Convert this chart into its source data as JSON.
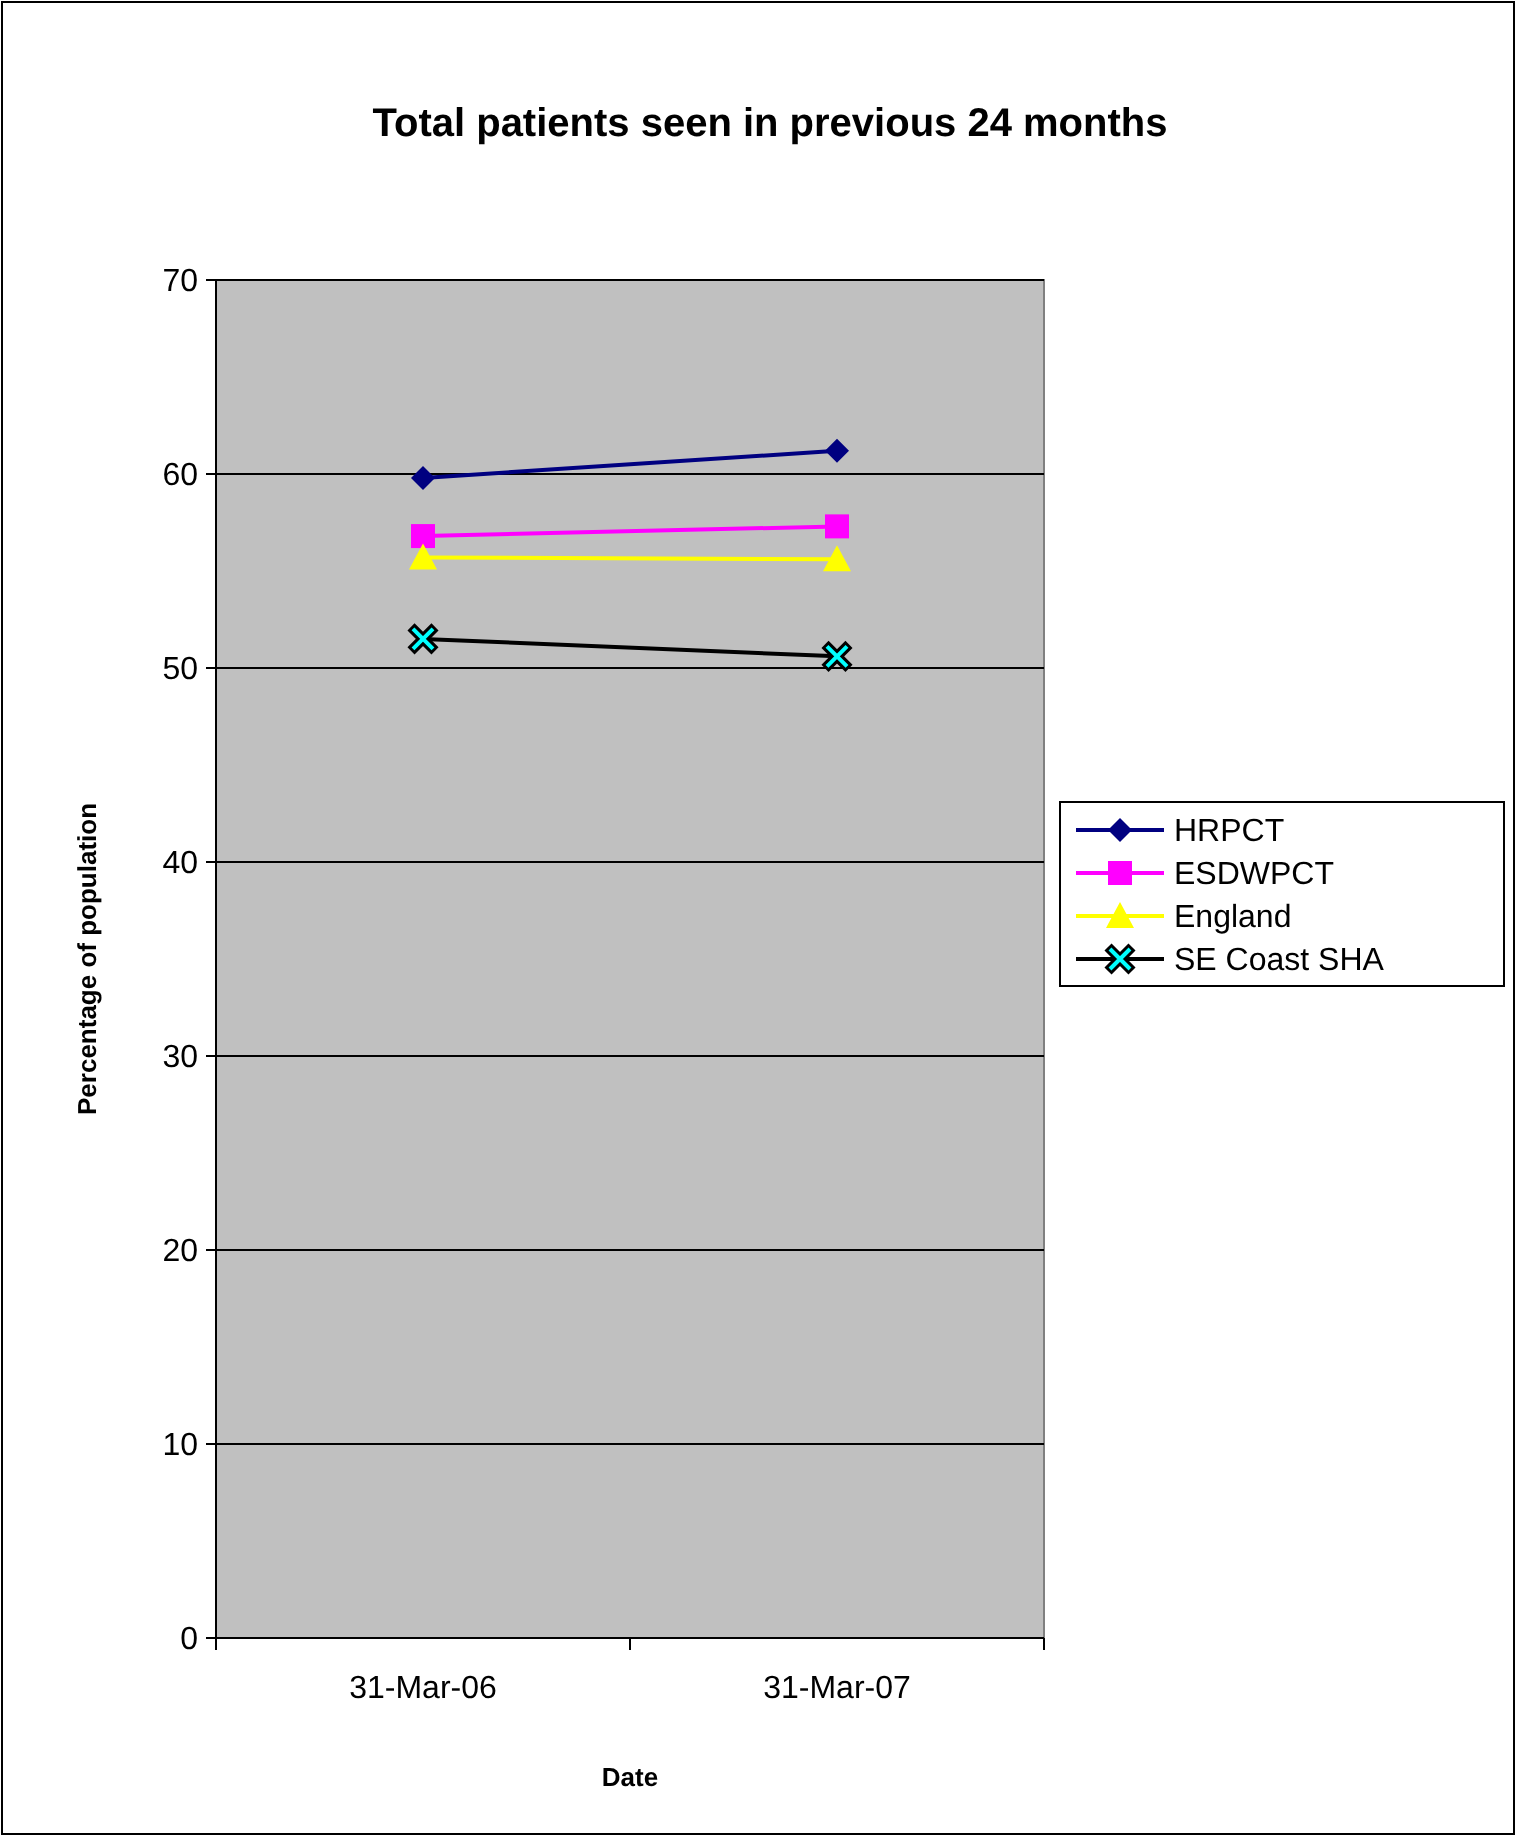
{
  "chart_data": {
    "type": "line",
    "title": "Total patients seen in previous 24 months",
    "xlabel": "Date",
    "ylabel": "Percentage of population",
    "categories": [
      "31-Mar-06",
      "31-Mar-07"
    ],
    "series": [
      {
        "name": "HRPCT",
        "color": "#000080",
        "marker": "diamond",
        "values": [
          59.8,
          61.2
        ]
      },
      {
        "name": "ESDWPCT",
        "color": "#ff00ff",
        "marker": "square",
        "values": [
          56.8,
          57.3
        ]
      },
      {
        "name": "England",
        "color": "#ffff00",
        "marker": "triangle",
        "values": [
          55.7,
          55.6
        ]
      },
      {
        "name": "SE Coast SHA",
        "color": "#000000",
        "marker": "cross",
        "values": [
          51.5,
          50.6
        ]
      }
    ],
    "ylim": [
      0,
      70
    ],
    "yticks": [
      0,
      10,
      20,
      30,
      40,
      50,
      60,
      70
    ],
    "grid": "y",
    "legend": "right"
  }
}
